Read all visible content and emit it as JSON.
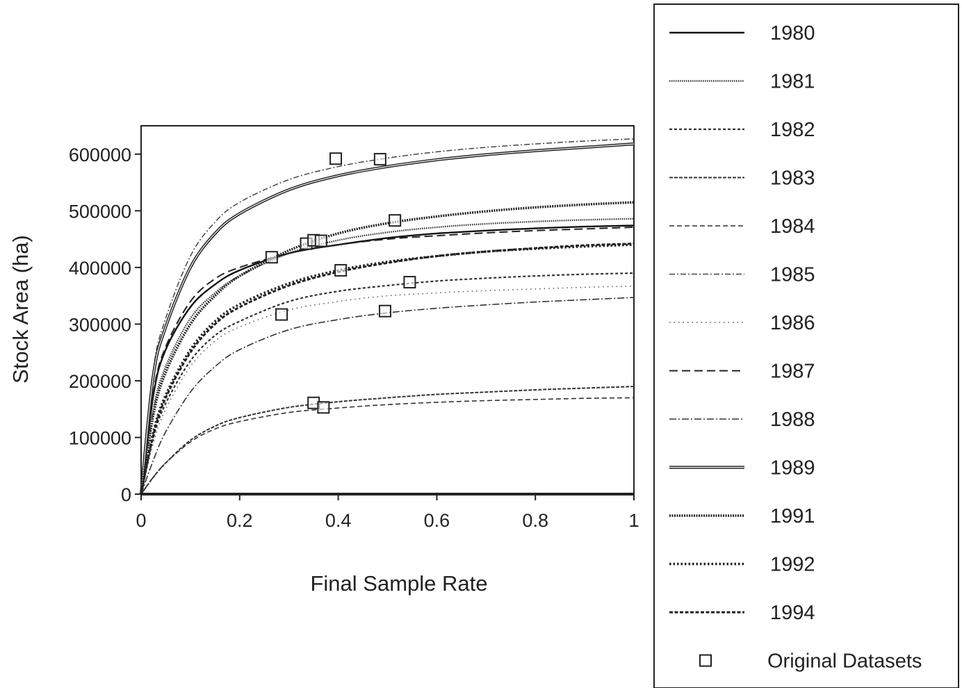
{
  "chart_data": {
    "type": "line",
    "title": "",
    "xlabel": "Final Sample Rate",
    "ylabel": "Stock Area (ha)",
    "xlim": [
      0,
      1
    ],
    "ylim": [
      0,
      650000
    ],
    "x_ticks": [
      0,
      0.2,
      0.4,
      0.6,
      0.8,
      1
    ],
    "x_tick_labels": [
      "0",
      "0.2",
      "0.4",
      "0.6",
      "0.8",
      "1"
    ],
    "y_ticks": [
      0,
      100000,
      200000,
      300000,
      400000,
      500000,
      600000
    ],
    "y_tick_labels": [
      "0",
      "100000",
      "200000",
      "300000",
      "400000",
      "500000",
      "600000"
    ],
    "grid": false,
    "legend_position": "right",
    "x": [
      0,
      0.025,
      0.05,
      0.1,
      0.15,
      0.2,
      0.3,
      0.4,
      0.5,
      0.6,
      0.7,
      0.8,
      0.9,
      1.0
    ],
    "series": [
      {
        "name": "1980",
        "style": "solid",
        "color": "#111111",
        "values": [
          0,
          175000,
          255000,
          330000,
          370000,
          395000,
          425000,
          440000,
          452000,
          460000,
          465000,
          469000,
          472000,
          474000
        ]
      },
      {
        "name": "1981",
        "style": "dotted-fine",
        "color": "#333333",
        "values": [
          0,
          150000,
          225000,
          310000,
          355000,
          385000,
          425000,
          448000,
          462000,
          471000,
          477000,
          481000,
          484000,
          486000
        ]
      },
      {
        "name": "1982",
        "style": "short-dash",
        "color": "#333333",
        "values": [
          0,
          100000,
          160000,
          235000,
          280000,
          305000,
          340000,
          358000,
          368000,
          376000,
          381000,
          385000,
          388000,
          390000
        ]
      },
      {
        "name": "1983",
        "style": "dash-dense",
        "color": "#333333",
        "values": [
          0,
          30000,
          55000,
          95000,
          120000,
          135000,
          153000,
          163000,
          170000,
          176000,
          180000,
          184000,
          187000,
          190000
        ]
      },
      {
        "name": "1984",
        "style": "dash",
        "color": "#333333",
        "values": [
          0,
          30000,
          55000,
          92000,
          115000,
          128000,
          144000,
          152000,
          158000,
          162000,
          165000,
          167000,
          169000,
          170000
        ]
      },
      {
        "name": "1985",
        "style": "dash-dot",
        "color": "#444444",
        "values": [
          0,
          220000,
          310000,
          420000,
          480000,
          515000,
          555000,
          578000,
          593000,
          604000,
          612000,
          618000,
          623000,
          627000
        ]
      },
      {
        "name": "1986",
        "style": "dotted-sparse",
        "color": "#555555",
        "values": [
          0,
          90000,
          150000,
          225000,
          270000,
          295000,
          325000,
          340000,
          350000,
          355000,
          359000,
          362000,
          365000,
          367000
        ]
      },
      {
        "name": "1987",
        "style": "long-dash",
        "color": "#222222",
        "values": [
          0,
          180000,
          260000,
          340000,
          380000,
          400000,
          425000,
          440000,
          450000,
          456000,
          461000,
          465000,
          468000,
          471000
        ]
      },
      {
        "name": "1988",
        "style": "dash-dot-long",
        "color": "#333333",
        "values": [
          0,
          60000,
          110000,
          180000,
          225000,
          255000,
          290000,
          308000,
          320000,
          328000,
          334000,
          339000,
          343000,
          347000
        ]
      },
      {
        "name": "1989",
        "style": "double",
        "color": "#222222",
        "values": [
          0,
          210000,
          295000,
          400000,
          460000,
          495000,
          537000,
          562000,
          578000,
          590000,
          599000,
          606000,
          612000,
          618000
        ]
      },
      {
        "name": "1991",
        "style": "dotted-heavy",
        "color": "#222222",
        "values": [
          0,
          140000,
          215000,
          300000,
          350000,
          385000,
          430000,
          460000,
          478000,
          490000,
          499000,
          506000,
          511000,
          515000
        ]
      },
      {
        "name": "1992",
        "style": "dotted-bold",
        "color": "#222222",
        "values": [
          0,
          110000,
          175000,
          255000,
          305000,
          335000,
          372000,
          395000,
          410000,
          420000,
          428000,
          433000,
          437000,
          440000
        ]
      },
      {
        "name": "1994",
        "style": "dash-bold",
        "color": "#222222",
        "values": [
          0,
          105000,
          170000,
          250000,
          300000,
          330000,
          368000,
          392000,
          408000,
          420000,
          428000,
          434000,
          439000,
          442000
        ]
      }
    ],
    "original_datasets": {
      "name": "Original Datasets",
      "marker": "square-open",
      "points": [
        {
          "x": 0.395,
          "y": 592000
        },
        {
          "x": 0.485,
          "y": 591000
        },
        {
          "x": 0.515,
          "y": 483000
        },
        {
          "x": 0.265,
          "y": 418000
        },
        {
          "x": 0.335,
          "y": 442000
        },
        {
          "x": 0.35,
          "y": 448000
        },
        {
          "x": 0.365,
          "y": 447000
        },
        {
          "x": 0.405,
          "y": 395000
        },
        {
          "x": 0.545,
          "y": 374000
        },
        {
          "x": 0.285,
          "y": 317000
        },
        {
          "x": 0.495,
          "y": 323000
        },
        {
          "x": 0.35,
          "y": 161000
        },
        {
          "x": 0.37,
          "y": 153000
        }
      ]
    }
  }
}
